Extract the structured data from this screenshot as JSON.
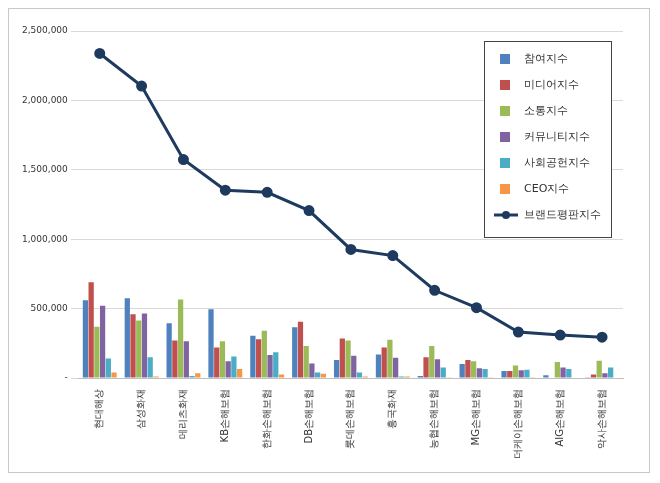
{
  "chart_data": {
    "type": "bar",
    "categories": [
      "현대해상",
      "삼성화재",
      "메리츠화재",
      "KB손해보험",
      "한화손해보험",
      "DB손해보험",
      "롯데손해보험",
      "흥국화재",
      "농협손해보험",
      "MG손해보험",
      "더케이손해보험",
      "AIG손해보험",
      "악사손해보험"
    ],
    "series": [
      {
        "name": "참여지수",
        "color": "#4f81bd",
        "values": [
          560000,
          575000,
          395000,
          495000,
          305000,
          365000,
          130000,
          170000,
          15000,
          100000,
          50000,
          20000,
          5000
        ]
      },
      {
        "name": "미디어지수",
        "color": "#c0504d",
        "values": [
          690000,
          460000,
          270000,
          220000,
          280000,
          405000,
          285000,
          220000,
          150000,
          130000,
          50000,
          0,
          25000
        ]
      },
      {
        "name": "소통지수",
        "color": "#9bbb59",
        "values": [
          370000,
          415000,
          565000,
          265000,
          340000,
          230000,
          270000,
          275000,
          230000,
          120000,
          90000,
          115000,
          125000
        ]
      },
      {
        "name": "커뮤니티지수",
        "color": "#8064a2",
        "values": [
          520000,
          465000,
          265000,
          120000,
          165000,
          105000,
          160000,
          145000,
          135000,
          70000,
          55000,
          75000,
          35000
        ]
      },
      {
        "name": "사회공헌지수",
        "color": "#4bacc6",
        "values": [
          140000,
          150000,
          15000,
          155000,
          185000,
          40000,
          40000,
          10000,
          75000,
          65000,
          60000,
          65000,
          75000
        ]
      },
      {
        "name": "CEO지수",
        "color": "#f79646",
        "values": [
          40000,
          10000,
          35000,
          65000,
          25000,
          30000,
          10000,
          10000,
          5000,
          5000,
          5000,
          0,
          0
        ]
      },
      {
        "name": "브랜드평판지수",
        "type": "line",
        "marker": "circle",
        "color": "#1f3a5f",
        "values": [
          2338000,
          2103000,
          1574000,
          1353000,
          1338000,
          1206000,
          926000,
          882000,
          632000,
          507000,
          331000,
          309000,
          294000
        ]
      }
    ],
    "ylim": [
      0,
      2500000
    ],
    "yticks": [
      {
        "value": 0,
        "label": "-"
      },
      {
        "value": 500000,
        "label": "500,000"
      },
      {
        "value": 1000000,
        "label": "1,000,000"
      },
      {
        "value": 1500000,
        "label": "1,500,000"
      },
      {
        "value": 2000000,
        "label": "2,000,000"
      },
      {
        "value": 2500000,
        "label": "2,500,000"
      }
    ],
    "grid": true,
    "legend": "upper right"
  }
}
